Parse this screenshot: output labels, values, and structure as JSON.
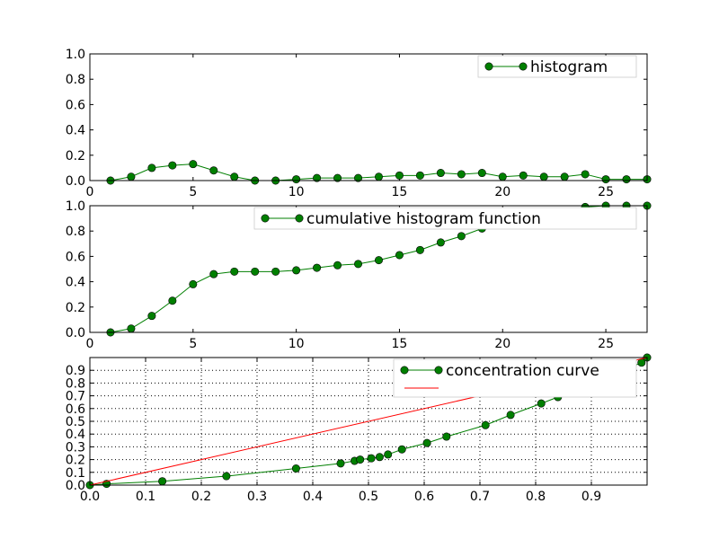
{
  "chart_data": [
    {
      "type": "line",
      "xlim": [
        0,
        27
      ],
      "ylim": [
        0,
        1.0
      ],
      "x_ticks": [
        0,
        5,
        10,
        15,
        20,
        25
      ],
      "y_ticks": [
        0.0,
        0.2,
        0.4,
        0.6,
        0.8,
        1.0
      ],
      "tick_decimals_x": 0,
      "tick_decimals_y": 1,
      "grid": false,
      "legend_position": "top-right",
      "series": [
        {
          "name": "histogram",
          "color": "#007f00",
          "marker": "circle",
          "x": [
            1,
            2,
            3,
            4,
            5,
            6,
            7,
            8,
            9,
            10,
            11,
            12,
            13,
            14,
            15,
            16,
            17,
            18,
            19,
            20,
            21,
            22,
            23,
            24,
            25,
            26,
            27
          ],
          "y": [
            0.0,
            0.03,
            0.1,
            0.12,
            0.13,
            0.08,
            0.03,
            0.0,
            0.0,
            0.01,
            0.02,
            0.02,
            0.02,
            0.03,
            0.04,
            0.04,
            0.06,
            0.05,
            0.06,
            0.03,
            0.04,
            0.03,
            0.03,
            0.05,
            0.01,
            0.01,
            0.01
          ]
        }
      ]
    },
    {
      "type": "line",
      "xlim": [
        0,
        27
      ],
      "ylim": [
        0,
        1.0
      ],
      "x_ticks": [
        0,
        5,
        10,
        15,
        20,
        25
      ],
      "y_ticks": [
        0.0,
        0.2,
        0.4,
        0.6,
        0.8,
        1.0
      ],
      "tick_decimals_x": 0,
      "tick_decimals_y": 1,
      "grid": false,
      "legend_position": "top-right",
      "series": [
        {
          "name": "cumulative histogram function",
          "color": "#007f00",
          "marker": "circle",
          "x": [
            1,
            2,
            3,
            4,
            5,
            6,
            7,
            8,
            9,
            10,
            11,
            12,
            13,
            14,
            15,
            16,
            17,
            18,
            19,
            20,
            21,
            22,
            23,
            24,
            25,
            26,
            27
          ],
          "y": [
            0.0,
            0.03,
            0.13,
            0.25,
            0.38,
            0.46,
            0.48,
            0.48,
            0.48,
            0.49,
            0.51,
            0.53,
            0.54,
            0.57,
            0.61,
            0.65,
            0.71,
            0.76,
            0.82,
            0.85,
            0.89,
            0.91,
            0.94,
            0.99,
            1.0,
            1.0,
            1.0
          ]
        }
      ]
    },
    {
      "type": "line",
      "xlim": [
        0,
        1.0
      ],
      "ylim": [
        0,
        1.0
      ],
      "x_ticks": [
        0.0,
        0.1,
        0.2,
        0.3,
        0.4,
        0.5,
        0.6,
        0.7,
        0.8,
        0.9
      ],
      "y_ticks": [
        0.0,
        0.1,
        0.2,
        0.3,
        0.4,
        0.5,
        0.6,
        0.7,
        0.8,
        0.9
      ],
      "tick_decimals_x": 1,
      "tick_decimals_y": 1,
      "grid": true,
      "legend_position": "top-right",
      "series": [
        {
          "name": "concentration curve",
          "color": "#007f00",
          "marker": "circle",
          "x": [
            0.0,
            0.03,
            0.13,
            0.245,
            0.37,
            0.45,
            0.475,
            0.485,
            0.505,
            0.52,
            0.535,
            0.56,
            0.605,
            0.64,
            0.71,
            0.755,
            0.81,
            0.84,
            0.88,
            0.905,
            0.94,
            0.99,
            1.0
          ],
          "y": [
            0.0,
            0.01,
            0.03,
            0.07,
            0.13,
            0.17,
            0.19,
            0.2,
            0.21,
            0.22,
            0.24,
            0.28,
            0.33,
            0.38,
            0.47,
            0.55,
            0.64,
            0.69,
            0.76,
            0.82,
            0.87,
            0.96,
            1.0
          ]
        },
        {
          "name": "",
          "color": "#ff0000",
          "marker": "none",
          "x": [
            0.0,
            1.0
          ],
          "y": [
            0.0,
            1.0
          ]
        }
      ]
    }
  ]
}
